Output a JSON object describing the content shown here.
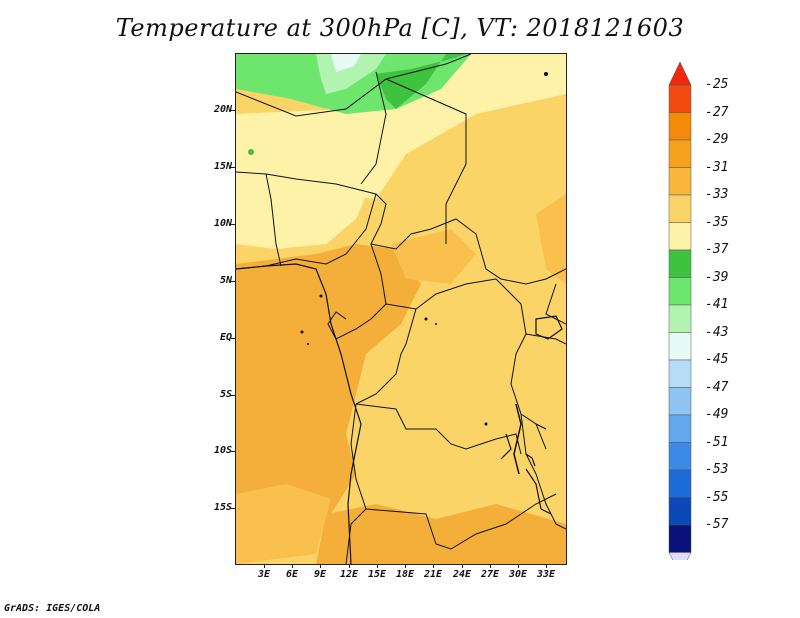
{
  "title": "Temperature at 300hPa [C], VT: 2018121603",
  "credit": "GrADS: IGES/COLA",
  "y_axis": [
    "20N",
    "15N",
    "10N",
    "5N",
    "EQ",
    "5S",
    "10S",
    "15S"
  ],
  "x_axis": [
    "3E",
    "6E",
    "9E",
    "12E",
    "15E",
    "18E",
    "21E",
    "24E",
    "27E",
    "30E",
    "33E"
  ],
  "colorbar": {
    "labels": [
      "-25",
      "-27",
      "-29",
      "-31",
      "-33",
      "-35",
      "-37",
      "-39",
      "-41",
      "-43",
      "-45",
      "-47",
      "-49",
      "-51",
      "-53",
      "-55",
      "-57"
    ],
    "colors": [
      "#f24a10",
      "#f48a0a",
      "#f7a21f",
      "#f9b63d",
      "#fbd468",
      "#fdf2a8",
      "#3fc23f",
      "#6ee66e",
      "#b0f4b0",
      "#e6fbf6",
      "#b6dcf8",
      "#8ec4f2",
      "#62a8ec",
      "#3a8ae6",
      "#1b6bd8",
      "#0b48b8",
      "#09127a"
    ],
    "top_triangle_color": "#f0280c",
    "bottom_triangle_color": "#e0dcf8"
  },
  "field_colors": {
    "warmest": "#f4ae3a",
    "warm": "#f9c04d",
    "mild": "#fbd468",
    "cool": "#fdf2a8",
    "green_dark": "#3fc23f",
    "green_mid": "#6ee66e",
    "green_light": "#b0f4b0"
  }
}
